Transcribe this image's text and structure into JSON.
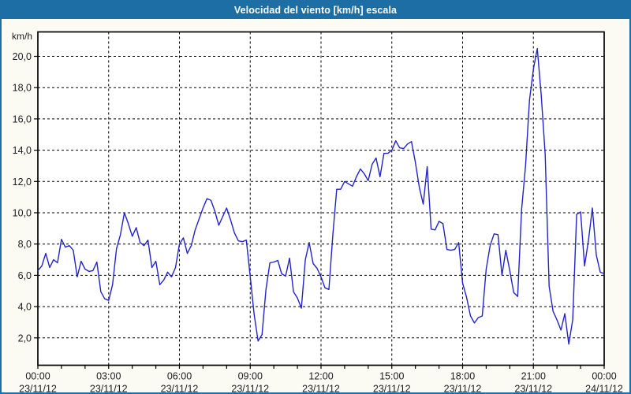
{
  "window": {
    "title": "Velocidad del viento [km/h] escala"
  },
  "colors": {
    "title_bar": "#1d6ea5",
    "title_text": "#ffffff",
    "window_border": "#1d6ea5",
    "window_bg": "#fbfbf3",
    "plot_bg": "#ffffff",
    "grid": "#000000",
    "axis_text": "#1c1c24",
    "line": "#2323c8"
  },
  "chart_data": {
    "type": "line",
    "title": "Velocidad del viento [km/h] escala",
    "ylabel": "km/h",
    "xlabel": "",
    "grid": "dashed",
    "legend": "none",
    "ylim": [
      0.25,
      21.55
    ],
    "xlim_hours": [
      0,
      24
    ],
    "y_tick_values": [
      2,
      4,
      6,
      8,
      10,
      12,
      14,
      16,
      18,
      20
    ],
    "y_ticks": [
      "2,0",
      "4,0",
      "6,0",
      "8,0",
      "10,0",
      "12,0",
      "14,0",
      "16,0",
      "18,0",
      "20,0"
    ],
    "x_tick_hours": [
      0,
      3,
      6,
      9,
      12,
      15,
      18,
      21,
      24
    ],
    "x_ticks": [
      {
        "time": "00:00",
        "date": "23/11/12"
      },
      {
        "time": "03:00",
        "date": "23/11/12"
      },
      {
        "time": "06:00",
        "date": "23/11/12"
      },
      {
        "time": "09:00",
        "date": "23/11/12"
      },
      {
        "time": "12:00",
        "date": "23/11/12"
      },
      {
        "time": "15:00",
        "date": "23/11/12"
      },
      {
        "time": "18:00",
        "date": "23/11/12"
      },
      {
        "time": "21:00",
        "date": "23/11/12"
      },
      {
        "time": "00:00",
        "date": "24/11/12"
      }
    ],
    "minor_x_tick_every_hours": 1,
    "series": [
      {
        "name": "Velocidad del viento",
        "unit": "km/h",
        "start": "23/11/12 00:00",
        "end": "24/11/12 00:00",
        "interval_minutes": 10,
        "values": [
          6.3,
          6.6,
          7.4,
          6.5,
          7.0,
          6.8,
          8.3,
          7.8,
          7.9,
          7.6,
          5.9,
          6.9,
          6.4,
          6.25,
          6.3,
          6.85,
          4.95,
          4.5,
          4.4,
          5.4,
          7.7,
          8.6,
          10.0,
          9.3,
          8.5,
          9.05,
          8.1,
          7.9,
          8.25,
          6.5,
          6.9,
          5.4,
          5.7,
          6.2,
          5.9,
          6.5,
          8.0,
          8.4,
          7.4,
          7.9,
          8.9,
          9.6,
          10.3,
          10.9,
          10.8,
          10.1,
          9.2,
          9.75,
          10.3,
          9.55,
          8.7,
          8.2,
          8.15,
          8.25,
          5.9,
          3.5,
          1.8,
          2.2,
          5.1,
          6.8,
          6.85,
          6.95,
          6.1,
          5.95,
          7.1,
          4.95,
          4.55,
          3.9,
          7.0,
          8.1,
          6.75,
          6.45,
          5.9,
          5.2,
          5.1,
          8.6,
          11.5,
          11.5,
          12.0,
          11.85,
          11.7,
          12.3,
          12.8,
          12.5,
          12.05,
          13.1,
          13.5,
          12.3,
          13.8,
          13.8,
          14.0,
          14.6,
          14.15,
          14.1,
          14.4,
          14.55,
          13.2,
          11.6,
          10.55,
          12.95,
          8.95,
          8.9,
          9.45,
          9.3,
          7.65,
          7.6,
          7.65,
          8.1,
          5.5,
          4.6,
          3.4,
          2.95,
          3.3,
          3.4,
          6.4,
          7.9,
          8.65,
          8.6,
          6.0,
          7.6,
          6.3,
          4.9,
          4.65,
          10.2,
          13.0,
          17.2,
          19.2,
          20.5,
          17.5,
          13.75,
          5.3,
          3.7,
          3.15,
          2.5,
          3.55,
          1.6,
          3.15,
          9.9,
          10.05,
          6.6,
          8.25,
          10.3,
          7.3,
          6.2,
          6.1
        ]
      }
    ]
  }
}
